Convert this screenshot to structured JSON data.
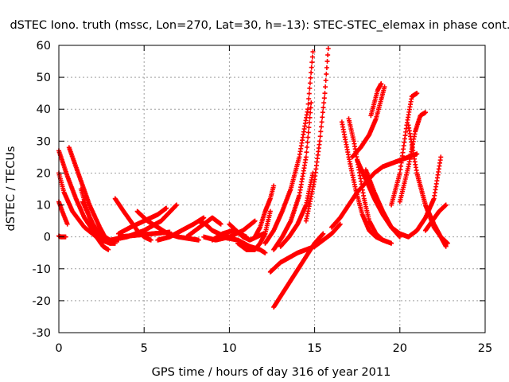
{
  "chart_data": {
    "type": "scatter",
    "title": "dSTEC Iono. truth (mssc, Lon=270, Lat=30, h=-13): STEC-STEC_elemax in phase cont.",
    "xlabel": "GPS time / hours of day 316 of year 2011",
    "ylabel": "dSTEC  / TECUs",
    "xlim": [
      0,
      25
    ],
    "ylim": [
      -30,
      60
    ],
    "x_ticks": [
      "0",
      "5",
      "10",
      "15",
      "20",
      "25"
    ],
    "y_ticks": [
      "-30",
      "-20",
      "-10",
      "0",
      "10",
      "20",
      "30",
      "40",
      "50",
      "60"
    ],
    "grid": true,
    "legend": "none",
    "marker": "plus",
    "color": "#ff0000",
    "series": [
      {
        "x": [
          0.0,
          0.5,
          1.0,
          1.5,
          2.0,
          2.5,
          3.0,
          3.3
        ],
        "y": [
          27,
          19,
          12,
          6,
          2,
          -1,
          -2,
          -2
        ]
      },
      {
        "x": [
          0.0,
          0.3,
          0.8,
          1.5,
          2.2,
          2.8
        ],
        "y": [
          20,
          14,
          8,
          3,
          0,
          -1
        ]
      },
      {
        "x": [
          0.0,
          0.2,
          0.5
        ],
        "y": [
          11,
          8,
          4
        ]
      },
      {
        "x": [
          0.0,
          0.1,
          0.2,
          0.4
        ],
        "y": [
          0.3,
          0,
          0,
          0
        ]
      },
      {
        "x": [
          0.6,
          1.2,
          1.8,
          2.4,
          2.7,
          3.0,
          3.5
        ],
        "y": [
          28,
          19,
          10,
          3,
          0,
          -1,
          -1
        ]
      },
      {
        "x": [
          1.3,
          1.8,
          2.2,
          2.6,
          2.9
        ],
        "y": [
          15,
          6,
          0,
          -3,
          -4
        ]
      },
      {
        "x": [
          1.4,
          2.0,
          2.5,
          3.0
        ],
        "y": [
          11,
          4,
          0,
          -2
        ]
      },
      {
        "x": [
          3.3,
          3.8,
          4.2,
          4.6,
          5.0,
          5.4
        ],
        "y": [
          12,
          8,
          5,
          2,
          0,
          -1
        ]
      },
      {
        "x": [
          3.5,
          4.2,
          5.0,
          5.8,
          6.3
        ],
        "y": [
          1,
          3,
          5,
          7,
          9
        ]
      },
      {
        "x": [
          3.0,
          4.0,
          5.0,
          6.0,
          6.9
        ],
        "y": [
          -1,
          0,
          2,
          5,
          10
        ]
      },
      {
        "x": [
          3.5,
          4.5,
          5.5,
          6.5
        ],
        "y": [
          0,
          0.5,
          1,
          1.5
        ]
      },
      {
        "x": [
          4.6,
          5.2,
          5.8,
          6.4,
          7.0,
          7.6,
          8.2
        ],
        "y": [
          8,
          5,
          3,
          1,
          0,
          -0.5,
          -1
        ]
      },
      {
        "x": [
          5.8,
          6.5,
          7.2,
          7.9,
          8.5
        ],
        "y": [
          -1,
          0,
          2,
          4,
          6
        ]
      },
      {
        "x": [
          7.5,
          8.0,
          8.5,
          9.0,
          9.5
        ],
        "y": [
          0,
          2,
          4,
          6,
          4
        ]
      },
      {
        "x": [
          8.2,
          8.6,
          9.0,
          9.4,
          9.8,
          10.2
        ],
        "y": [
          5,
          4,
          2,
          1,
          0,
          0
        ]
      },
      {
        "x": [
          8.5,
          9.2,
          10.0,
          10.8,
          11.5
        ],
        "y": [
          0,
          -1,
          0,
          2,
          5
        ]
      },
      {
        "x": [
          9.0,
          9.6,
          10.2,
          10.6,
          11.0
        ],
        "y": [
          -1,
          1,
          2,
          1,
          0
        ]
      },
      {
        "x": [
          10.0,
          10.4,
          10.8,
          11.2,
          11.6,
          12.0
        ],
        "y": [
          4,
          2,
          0,
          -1,
          0,
          1
        ]
      },
      {
        "x": [
          10.5,
          11.0,
          11.5,
          11.8,
          12.1,
          12.4
        ],
        "y": [
          -2,
          -4,
          -4,
          -2,
          1,
          8
        ]
      },
      {
        "x": [
          9.5,
          10.5,
          11.2,
          11.8,
          12.1
        ],
        "y": [
          0,
          -1,
          -3,
          -4,
          -5
        ]
      },
      {
        "x": [
          11.5,
          11.8,
          12.1,
          12.4,
          12.6
        ],
        "y": [
          0,
          3,
          8,
          12,
          16
        ]
      },
      {
        "x": [
          12.1,
          12.6,
          13.1,
          13.6,
          14.1,
          14.6,
          14.9
        ],
        "y": [
          -2,
          2,
          8,
          15,
          25,
          40,
          58
        ]
      },
      {
        "x": [
          12.6,
          13.1,
          13.6,
          14.1,
          14.5,
          14.8
        ],
        "y": [
          -4,
          0,
          5,
          13,
          25,
          42
        ]
      },
      {
        "x": [
          13.0,
          13.5,
          14.0,
          14.5,
          14.9
        ],
        "y": [
          -3,
          0,
          4,
          10,
          20
        ]
      },
      {
        "x": [
          14.5,
          15.0,
          15.3,
          15.6,
          15.8
        ],
        "y": [
          5,
          18,
          30,
          45,
          59
        ]
      },
      {
        "x": [
          12.4,
          13.0,
          14.0,
          15.0,
          16.0,
          16.5
        ],
        "y": [
          -11,
          -8,
          -5,
          -3,
          1,
          4
        ]
      },
      {
        "x": [
          12.6,
          13.2,
          13.8,
          14.4,
          15.0,
          15.5
        ],
        "y": [
          -22,
          -17,
          -12,
          -7,
          -2,
          1
        ]
      },
      {
        "x": [
          16.0,
          16.5,
          17.0,
          17.5,
          18.0,
          18.5,
          19.0,
          19.5,
          20.0,
          20.5,
          21.0
        ],
        "y": [
          3,
          6,
          10,
          14,
          17,
          20,
          22,
          23,
          24,
          25,
          26
        ]
      },
      {
        "x": [
          16.6,
          17.0,
          17.4,
          17.8,
          18.2,
          18.6,
          19.0
        ],
        "y": [
          36,
          25,
          15,
          7,
          2,
          0,
          -1
        ]
      },
      {
        "x": [
          17.0,
          17.3,
          17.6,
          17.9,
          18.2,
          18.6,
          19.0,
          19.5
        ],
        "y": [
          37,
          30,
          21,
          12,
          5,
          1,
          -1,
          -2
        ]
      },
      {
        "x": [
          18.3,
          18.5,
          18.7,
          18.9
        ],
        "y": [
          38,
          42,
          46,
          48
        ]
      },
      {
        "x": [
          17.2,
          17.7,
          18.2,
          18.6,
          18.9,
          19.1
        ],
        "y": [
          25,
          28,
          32,
          37,
          43,
          47
        ]
      },
      {
        "x": [
          17.5,
          18.0,
          18.5,
          19.0,
          19.5,
          20.0,
          20.5
        ],
        "y": [
          24,
          18,
          12,
          7,
          3,
          1,
          0
        ]
      },
      {
        "x": [
          18.0,
          18.5,
          19.0,
          19.5,
          20.0
        ],
        "y": [
          21,
          14,
          8,
          3,
          0
        ]
      },
      {
        "x": [
          19.5,
          20.0,
          20.4,
          20.7,
          21.0
        ],
        "y": [
          10,
          20,
          35,
          44,
          45
        ]
      },
      {
        "x": [
          20.0,
          20.5,
          20.9,
          21.2,
          21.5
        ],
        "y": [
          11,
          22,
          33,
          38,
          39
        ]
      },
      {
        "x": [
          20.5,
          21.0,
          21.5,
          22.0,
          22.4,
          22.8
        ],
        "y": [
          35,
          20,
          10,
          3,
          0,
          -2
        ]
      },
      {
        "x": [
          21.0,
          21.5,
          22.0,
          22.4,
          22.7
        ],
        "y": [
          20,
          10,
          4,
          0,
          -3
        ]
      },
      {
        "x": [
          20.5,
          21.0,
          21.5,
          22.0,
          22.4
        ],
        "y": [
          0,
          2,
          6,
          12,
          25
        ]
      },
      {
        "x": [
          21.5,
          21.9,
          22.3,
          22.7
        ],
        "y": [
          2,
          5,
          8,
          10
        ]
      }
    ]
  }
}
